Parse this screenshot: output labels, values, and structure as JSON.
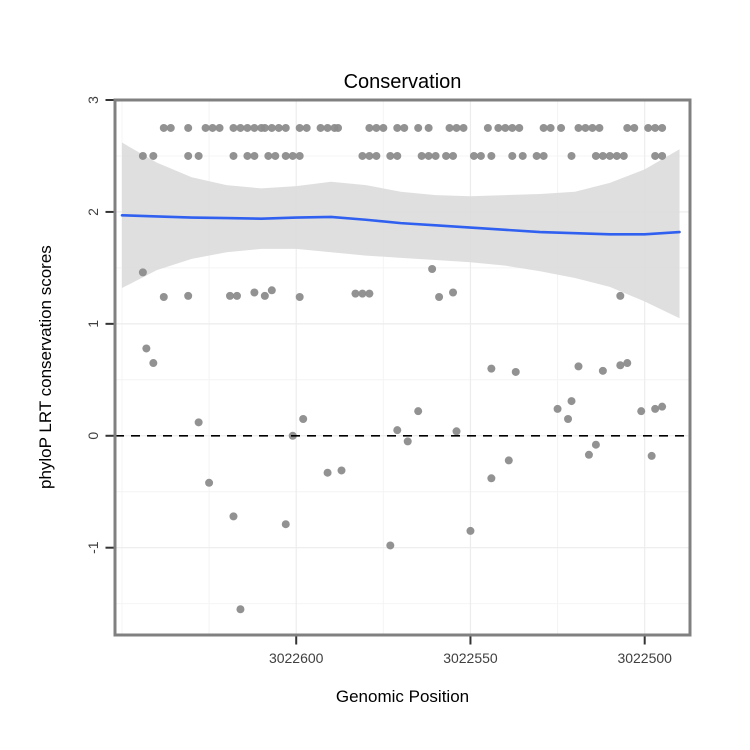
{
  "chart_data": {
    "type": "scatter",
    "title": "Conservation",
    "xlabel": "Genomic Position",
    "ylabel": "phyloP LRT conservation scores",
    "panel_bg": "#ffffff",
    "border_color": "#808080",
    "grid_major_color": "#ececec",
    "grid_minor_color": "#f4f4f4",
    "tick_color": "#333333",
    "tick_label_color": "#404040",
    "point_color": "#8c8c8c",
    "x_axis": {
      "reversed": true,
      "range_left_to_right": [
        3022652,
        3022487
      ],
      "ticks": [
        3022600,
        3022550,
        3022500
      ],
      "tick_labels": [
        "3022600",
        "3022550",
        "3022500"
      ],
      "minor_gridlines": [
        3022650,
        3022625,
        3022575,
        3022525
      ]
    },
    "y_axis": {
      "range": [
        -1.78,
        3.0
      ],
      "ticks": [
        3,
        2,
        1,
        0,
        -1
      ],
      "tick_labels": [
        "3",
        "2",
        "1",
        "0",
        "-1"
      ],
      "minor_gridlines": [
        2.5,
        1.5,
        0.5,
        -0.5,
        -1.5
      ]
    },
    "zero_line": {
      "y": 0,
      "style": "dashed",
      "color": "#000000"
    },
    "smooth": {
      "color": "#3060f0",
      "band_color": "#dbdbdb",
      "band_opacity": 0.9,
      "x": [
        3022650,
        3022640,
        3022630,
        3022620,
        3022610,
        3022600,
        3022590,
        3022580,
        3022570,
        3022560,
        3022550,
        3022540,
        3022530,
        3022520,
        3022510,
        3022500,
        3022490
      ],
      "y": [
        1.97,
        1.96,
        1.95,
        1.945,
        1.94,
        1.95,
        1.955,
        1.93,
        1.9,
        1.88,
        1.86,
        1.84,
        1.82,
        1.81,
        1.8,
        1.8,
        1.82
      ],
      "upper": [
        2.62,
        2.44,
        2.31,
        2.24,
        2.21,
        2.23,
        2.27,
        2.24,
        2.18,
        2.15,
        2.14,
        2.15,
        2.16,
        2.18,
        2.26,
        2.38,
        2.56
      ],
      "lower": [
        1.32,
        1.48,
        1.58,
        1.64,
        1.67,
        1.67,
        1.64,
        1.61,
        1.59,
        1.57,
        1.55,
        1.52,
        1.47,
        1.41,
        1.33,
        1.2,
        1.05
      ]
    },
    "points": [
      [
        3022638,
        2.75
      ],
      [
        3022636,
        2.75
      ],
      [
        3022631,
        2.75
      ],
      [
        3022626,
        2.75
      ],
      [
        3022624,
        2.75
      ],
      [
        3022622,
        2.75
      ],
      [
        3022618,
        2.75
      ],
      [
        3022616,
        2.75
      ],
      [
        3022614,
        2.75
      ],
      [
        3022612,
        2.75
      ],
      [
        3022610,
        2.75
      ],
      [
        3022609,
        2.75
      ],
      [
        3022607,
        2.75
      ],
      [
        3022605,
        2.75
      ],
      [
        3022603,
        2.75
      ],
      [
        3022599,
        2.75
      ],
      [
        3022597,
        2.75
      ],
      [
        3022593,
        2.75
      ],
      [
        3022591,
        2.75
      ],
      [
        3022589,
        2.75
      ],
      [
        3022588,
        2.75
      ],
      [
        3022579,
        2.75
      ],
      [
        3022577,
        2.75
      ],
      [
        3022575,
        2.75
      ],
      [
        3022571,
        2.75
      ],
      [
        3022569,
        2.75
      ],
      [
        3022565,
        2.75
      ],
      [
        3022562,
        2.75
      ],
      [
        3022556,
        2.75
      ],
      [
        3022554,
        2.75
      ],
      [
        3022552,
        2.75
      ],
      [
        3022545,
        2.75
      ],
      [
        3022542,
        2.75
      ],
      [
        3022540,
        2.75
      ],
      [
        3022538,
        2.75
      ],
      [
        3022536,
        2.75
      ],
      [
        3022529,
        2.75
      ],
      [
        3022527,
        2.75
      ],
      [
        3022524,
        2.75
      ],
      [
        3022519,
        2.75
      ],
      [
        3022517,
        2.75
      ],
      [
        3022515,
        2.75
      ],
      [
        3022513,
        2.75
      ],
      [
        3022505,
        2.75
      ],
      [
        3022503,
        2.75
      ],
      [
        3022499,
        2.75
      ],
      [
        3022497,
        2.75
      ],
      [
        3022495,
        2.75
      ],
      [
        3022644,
        2.5
      ],
      [
        3022641,
        2.5
      ],
      [
        3022631,
        2.5
      ],
      [
        3022628,
        2.5
      ],
      [
        3022618,
        2.5
      ],
      [
        3022614,
        2.5
      ],
      [
        3022612,
        2.5
      ],
      [
        3022608,
        2.5
      ],
      [
        3022606,
        2.5
      ],
      [
        3022603,
        2.5
      ],
      [
        3022601,
        2.5
      ],
      [
        3022599,
        2.5
      ],
      [
        3022581,
        2.5
      ],
      [
        3022579,
        2.5
      ],
      [
        3022577,
        2.5
      ],
      [
        3022573,
        2.5
      ],
      [
        3022571,
        2.5
      ],
      [
        3022564,
        2.5
      ],
      [
        3022562,
        2.5
      ],
      [
        3022560,
        2.5
      ],
      [
        3022557,
        2.5
      ],
      [
        3022555,
        2.5
      ],
      [
        3022549,
        2.5
      ],
      [
        3022547,
        2.5
      ],
      [
        3022544,
        2.5
      ],
      [
        3022538,
        2.5
      ],
      [
        3022535,
        2.5
      ],
      [
        3022531,
        2.5
      ],
      [
        3022529,
        2.5
      ],
      [
        3022521,
        2.5
      ],
      [
        3022514,
        2.5
      ],
      [
        3022512,
        2.5
      ],
      [
        3022510,
        2.5
      ],
      [
        3022508,
        2.5
      ],
      [
        3022506,
        2.5
      ],
      [
        3022497,
        2.5
      ],
      [
        3022495,
        2.5
      ],
      [
        3022644,
        1.46
      ],
      [
        3022643,
        0.78
      ],
      [
        3022641,
        0.65
      ],
      [
        3022638,
        1.24
      ],
      [
        3022631,
        1.25
      ],
      [
        3022628,
        0.12
      ],
      [
        3022625,
        -0.42
      ],
      [
        3022618,
        -0.72
      ],
      [
        3022616,
        -1.55
      ],
      [
        3022619,
        1.25
      ],
      [
        3022617,
        1.25
      ],
      [
        3022612,
        1.28
      ],
      [
        3022609,
        1.25
      ],
      [
        3022607,
        1.3
      ],
      [
        3022603,
        -0.79
      ],
      [
        3022601,
        0.0
      ],
      [
        3022599,
        1.24
      ],
      [
        3022598,
        0.15
      ],
      [
        3022591,
        -0.33
      ],
      [
        3022587,
        -0.31
      ],
      [
        3022583,
        1.27
      ],
      [
        3022581,
        1.27
      ],
      [
        3022579,
        1.27
      ],
      [
        3022573,
        -0.98
      ],
      [
        3022571,
        0.05
      ],
      [
        3022568,
        -0.05
      ],
      [
        3022565,
        0.22
      ],
      [
        3022561,
        1.49
      ],
      [
        3022559,
        1.24
      ],
      [
        3022555,
        1.28
      ],
      [
        3022554,
        0.04
      ],
      [
        3022550,
        -0.85
      ],
      [
        3022544,
        0.6
      ],
      [
        3022544,
        -0.38
      ],
      [
        3022539,
        -0.22
      ],
      [
        3022537,
        0.57
      ],
      [
        3022525,
        0.24
      ],
      [
        3022522,
        0.15
      ],
      [
        3022521,
        0.31
      ],
      [
        3022519,
        0.62
      ],
      [
        3022516,
        -0.17
      ],
      [
        3022514,
        -0.08
      ],
      [
        3022512,
        0.58
      ],
      [
        3022507,
        1.25
      ],
      [
        3022507,
        0.63
      ],
      [
        3022505,
        0.65
      ],
      [
        3022501,
        0.22
      ],
      [
        3022498,
        -0.18
      ],
      [
        3022497,
        0.24
      ],
      [
        3022495,
        0.26
      ]
    ]
  }
}
